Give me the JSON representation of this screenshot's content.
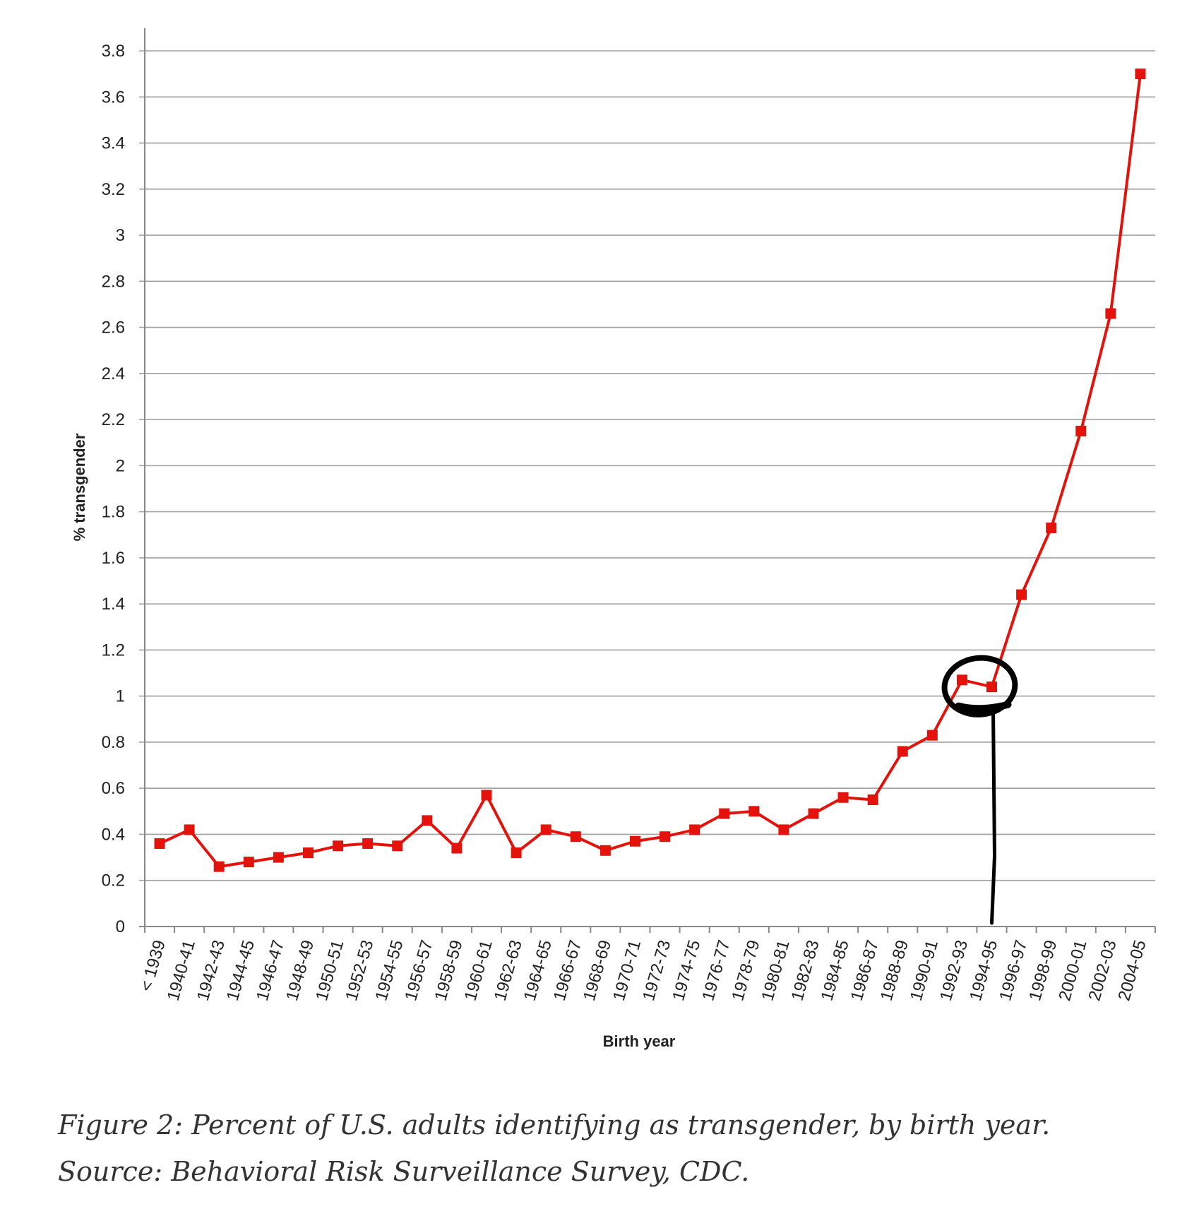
{
  "chart_data": {
    "type": "line",
    "ylabel": "% transgender",
    "xlabel": "Birth year",
    "ylim": [
      0,
      3.8
    ],
    "yticks": [
      0,
      0.2,
      0.4,
      0.6,
      0.8,
      1,
      1.2,
      1.4,
      1.6,
      1.8,
      2,
      2.2,
      2.4,
      2.6,
      2.8,
      3,
      3.2,
      3.4,
      3.6,
      3.8
    ],
    "ytick_labels": [
      "0",
      "0.2",
      "0.4",
      "0.6",
      "0.8",
      "1",
      "1.2",
      "1.4",
      "1.6",
      "1.8",
      "2",
      "2.2",
      "2.4",
      "2.6",
      "2.8",
      "3",
      "3.2",
      "3.4",
      "3.6",
      "3.8"
    ],
    "categories": [
      "< 1939",
      "1940-41",
      "1942-43",
      "1944-45",
      "1946-47",
      "1948-49",
      "1950-51",
      "1952-53",
      "1954-55",
      "1956-57",
      "1958-59",
      "1960-61",
      "1962-63",
      "1964-65",
      "1966-67",
      "1968-69",
      "1970-71",
      "1972-73",
      "1974-75",
      "1976-77",
      "1978-79",
      "1980-81",
      "1982-83",
      "1984-85",
      "1986-87",
      "1988-89",
      "1990-91",
      "1992-93",
      "1994-95",
      "1996-97",
      "1998-99",
      "2000-01",
      "2002-03",
      "2004-05"
    ],
    "series": [
      {
        "values": [
          0.36,
          0.42,
          0.26,
          0.28,
          0.3,
          0.32,
          0.35,
          0.36,
          0.35,
          0.46,
          0.34,
          0.57,
          0.32,
          0.42,
          0.39,
          0.33,
          0.37,
          0.39,
          0.42,
          0.49,
          0.5,
          0.42,
          0.49,
          0.56,
          0.55,
          0.76,
          0.83,
          1.07,
          1.04,
          1.44,
          1.73,
          2.15,
          2.66,
          3.7
        ],
        "color": "#e3120b"
      }
    ],
    "grid": true,
    "legend": "none",
    "annotation": {
      "type": "hand-drawn circle with vertical line",
      "categories": [
        "1992-93",
        "1994-95"
      ],
      "color": "#000000"
    }
  },
  "caption": "Figure 2: Percent of U.S. adults identifying as transgender, by birth year. Source: Behavioral Risk Surveillance Survey, CDC."
}
